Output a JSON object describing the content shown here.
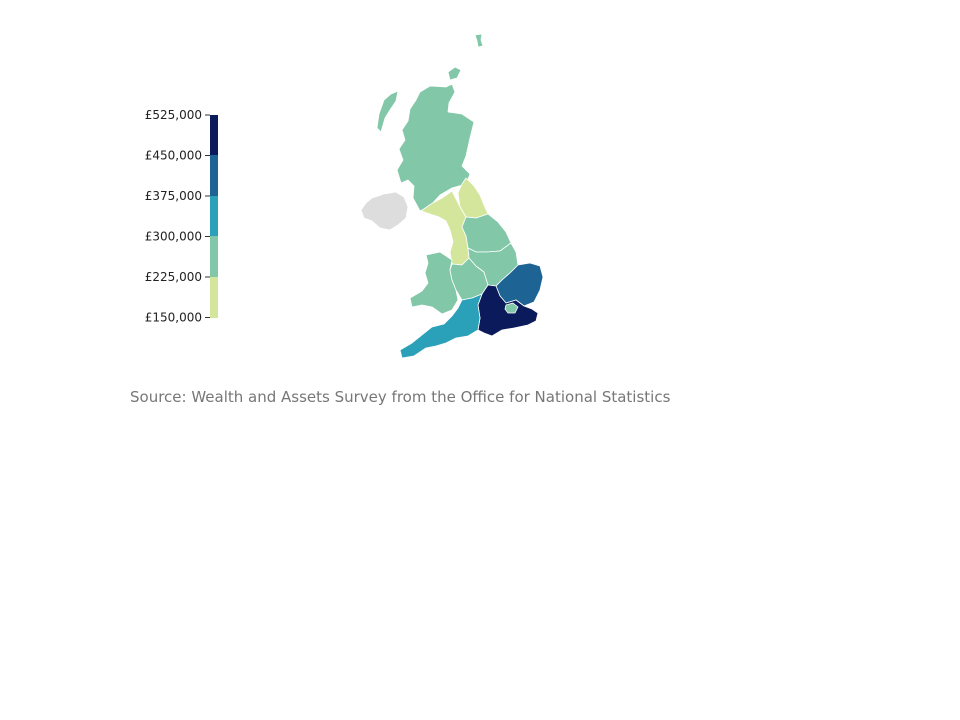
{
  "legend": {
    "ticks": [
      "£525,000",
      "£450,000",
      "£375,000",
      "£300,000",
      "£225,000",
      "£150,000"
    ],
    "bins": [
      {
        "from": 450000,
        "to": 525000,
        "color": "#0b1a5a"
      },
      {
        "from": 375000,
        "to": 450000,
        "color": "#1d6394"
      },
      {
        "from": 300000,
        "to": 375000,
        "color": "#2aa1b8"
      },
      {
        "from": 225000,
        "to": 300000,
        "color": "#81c7a8"
      },
      {
        "from": 150000,
        "to": 225000,
        "color": "#d3e69c"
      }
    ]
  },
  "map": {
    "no_data_color": "#dddddd",
    "regions": [
      {
        "id": "scotland",
        "color": "#81c7a8"
      },
      {
        "id": "north-east",
        "color": "#d3e69c"
      },
      {
        "id": "north-west",
        "color": "#d3e69c"
      },
      {
        "id": "yorkshire-and-the-humber",
        "color": "#81c7a8"
      },
      {
        "id": "east-midlands",
        "color": "#81c7a8"
      },
      {
        "id": "west-midlands",
        "color": "#81c7a8"
      },
      {
        "id": "wales",
        "color": "#81c7a8"
      },
      {
        "id": "east-of-england",
        "color": "#1d6394"
      },
      {
        "id": "london",
        "color": "#81c7a8"
      },
      {
        "id": "south-east",
        "color": "#0b1a5a"
      },
      {
        "id": "south-west",
        "color": "#2aa1b8"
      },
      {
        "id": "northern-ireland",
        "color": "#dddddd"
      }
    ]
  },
  "source": "Source: Wealth and Assets Survey from the Office for National Statistics"
}
